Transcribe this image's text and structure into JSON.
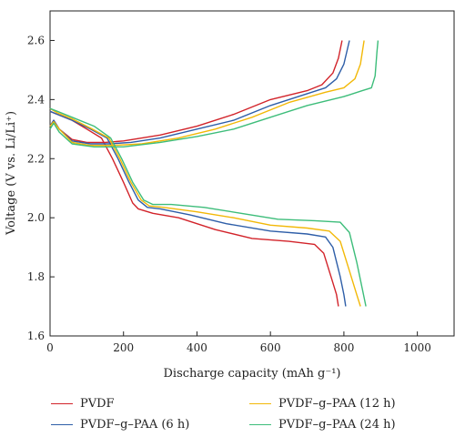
{
  "chart_data": {
    "type": "line",
    "xlabel": "Discharge capacity (mAh g⁻¹)",
    "ylabel": "Voltage  (V vs. Li/Li⁺)",
    "xlim": [
      0,
      1100
    ],
    "ylim": [
      1.6,
      2.7
    ],
    "xticks": [
      0,
      200,
      400,
      600,
      800,
      1000
    ],
    "yticks": [
      1.6,
      1.8,
      2.0,
      2.2,
      2.4,
      2.6
    ],
    "xtick_labels": [
      "0",
      "200",
      "400",
      "600",
      "800",
      "1000"
    ],
    "ytick_labels": [
      "1.6",
      "1.8",
      "2.0",
      "2.2",
      "2.4",
      "2.6"
    ],
    "grid": false,
    "legend_position": "bottom",
    "series": [
      {
        "name": "PVDF",
        "color": "#d2232a",
        "discharge": [
          [
            0,
            2.36
          ],
          [
            20,
            2.35
          ],
          [
            60,
            2.33
          ],
          [
            100,
            2.3
          ],
          [
            140,
            2.27
          ],
          [
            170,
            2.2
          ],
          [
            200,
            2.12
          ],
          [
            225,
            2.05
          ],
          [
            240,
            2.03
          ],
          [
            280,
            2.015
          ],
          [
            350,
            2.0
          ],
          [
            450,
            1.96
          ],
          [
            550,
            1.93
          ],
          [
            650,
            1.92
          ],
          [
            720,
            1.91
          ],
          [
            745,
            1.88
          ],
          [
            765,
            1.8
          ],
          [
            780,
            1.74
          ],
          [
            785,
            1.7
          ]
        ],
        "charge": [
          [
            0,
            2.31
          ],
          [
            10,
            2.33
          ],
          [
            25,
            2.3
          ],
          [
            60,
            2.265
          ],
          [
            100,
            2.255
          ],
          [
            150,
            2.255
          ],
          [
            200,
            2.26
          ],
          [
            300,
            2.28
          ],
          [
            400,
            2.31
          ],
          [
            500,
            2.35
          ],
          [
            600,
            2.4
          ],
          [
            700,
            2.43
          ],
          [
            740,
            2.45
          ],
          [
            770,
            2.49
          ],
          [
            785,
            2.54
          ],
          [
            795,
            2.6
          ]
        ]
      },
      {
        "name": "PVDF–g–PAA (6 h)",
        "color": "#2e5ea8",
        "discharge": [
          [
            0,
            2.36
          ],
          [
            20,
            2.35
          ],
          [
            60,
            2.33
          ],
          [
            110,
            2.3
          ],
          [
            155,
            2.27
          ],
          [
            185,
            2.2
          ],
          [
            215,
            2.12
          ],
          [
            240,
            2.06
          ],
          [
            265,
            2.035
          ],
          [
            300,
            2.03
          ],
          [
            380,
            2.01
          ],
          [
            480,
            1.98
          ],
          [
            600,
            1.955
          ],
          [
            700,
            1.945
          ],
          [
            750,
            1.935
          ],
          [
            770,
            1.9
          ],
          [
            790,
            1.8
          ],
          [
            800,
            1.74
          ],
          [
            805,
            1.7
          ]
        ],
        "charge": [
          [
            0,
            2.31
          ],
          [
            10,
            2.33
          ],
          [
            25,
            2.3
          ],
          [
            60,
            2.26
          ],
          [
            110,
            2.25
          ],
          [
            160,
            2.25
          ],
          [
            220,
            2.255
          ],
          [
            300,
            2.27
          ],
          [
            400,
            2.3
          ],
          [
            500,
            2.33
          ],
          [
            600,
            2.38
          ],
          [
            700,
            2.42
          ],
          [
            750,
            2.44
          ],
          [
            780,
            2.47
          ],
          [
            800,
            2.52
          ],
          [
            815,
            2.6
          ]
        ]
      },
      {
        "name": "PVDF–g–PAA (12 h)",
        "color": "#f2b807",
        "discharge": [
          [
            0,
            2.37
          ],
          [
            20,
            2.355
          ],
          [
            60,
            2.335
          ],
          [
            115,
            2.3
          ],
          [
            160,
            2.27
          ],
          [
            190,
            2.2
          ],
          [
            220,
            2.12
          ],
          [
            248,
            2.06
          ],
          [
            270,
            2.04
          ],
          [
            310,
            2.035
          ],
          [
            400,
            2.02
          ],
          [
            500,
            2.0
          ],
          [
            600,
            1.975
          ],
          [
            700,
            1.965
          ],
          [
            760,
            1.955
          ],
          [
            790,
            1.92
          ],
          [
            815,
            1.82
          ],
          [
            835,
            1.74
          ],
          [
            845,
            1.7
          ]
        ],
        "charge": [
          [
            0,
            2.31
          ],
          [
            10,
            2.325
          ],
          [
            25,
            2.3
          ],
          [
            60,
            2.255
          ],
          [
            110,
            2.245
          ],
          [
            170,
            2.245
          ],
          [
            250,
            2.25
          ],
          [
            350,
            2.27
          ],
          [
            450,
            2.3
          ],
          [
            550,
            2.34
          ],
          [
            650,
            2.39
          ],
          [
            750,
            2.425
          ],
          [
            800,
            2.44
          ],
          [
            830,
            2.47
          ],
          [
            845,
            2.52
          ],
          [
            855,
            2.6
          ]
        ]
      },
      {
        "name": "PVDF–g–PAA (24 h)",
        "color": "#3dbd7a",
        "discharge": [
          [
            0,
            2.37
          ],
          [
            20,
            2.36
          ],
          [
            60,
            2.34
          ],
          [
            120,
            2.31
          ],
          [
            165,
            2.27
          ],
          [
            195,
            2.2
          ],
          [
            225,
            2.12
          ],
          [
            255,
            2.06
          ],
          [
            280,
            2.045
          ],
          [
            330,
            2.045
          ],
          [
            420,
            2.035
          ],
          [
            520,
            2.015
          ],
          [
            620,
            1.995
          ],
          [
            720,
            1.99
          ],
          [
            790,
            1.985
          ],
          [
            815,
            1.95
          ],
          [
            835,
            1.85
          ],
          [
            850,
            1.76
          ],
          [
            860,
            1.7
          ]
        ],
        "charge": [
          [
            0,
            2.3
          ],
          [
            10,
            2.32
          ],
          [
            25,
            2.29
          ],
          [
            60,
            2.25
          ],
          [
            120,
            2.24
          ],
          [
            200,
            2.24
          ],
          [
            300,
            2.255
          ],
          [
            400,
            2.275
          ],
          [
            500,
            2.3
          ],
          [
            600,
            2.34
          ],
          [
            700,
            2.38
          ],
          [
            800,
            2.41
          ],
          [
            850,
            2.43
          ],
          [
            875,
            2.44
          ],
          [
            885,
            2.48
          ],
          [
            890,
            2.56
          ],
          [
            893,
            2.6
          ]
        ]
      }
    ]
  }
}
